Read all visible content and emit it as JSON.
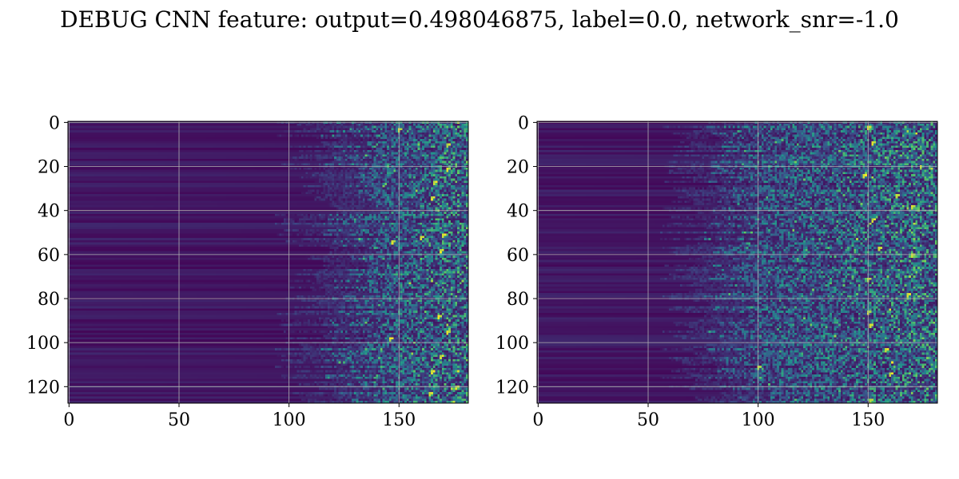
{
  "figure": {
    "suptitle": "DEBUG CNN feature: output=0.498046875, label=0.0, network_snr=-1.0"
  },
  "chart_data": [
    {
      "type": "heatmap",
      "colormap": "viridis",
      "grid": true,
      "rows": 128,
      "cols": 182,
      "xlim": [
        -0.5,
        181.5
      ],
      "ylim": [
        127.5,
        -0.5
      ],
      "x_ticks": [
        0,
        50,
        100,
        150
      ],
      "y_ticks": [
        0,
        20,
        40,
        60,
        80,
        100,
        120
      ],
      "value_profile": "near zero (dark purple) for columns 0-125 with faint horizontal row banding; scattered higher values (teal/green/yellow) concentrated in columns ~130-181",
      "onset_col": 128,
      "hotspots": [
        [
          3,
          150
        ],
        [
          10,
          172
        ],
        [
          21,
          172
        ],
        [
          27,
          166
        ],
        [
          34,
          165
        ],
        [
          51,
          170
        ],
        [
          52,
          160
        ],
        [
          54,
          147
        ],
        [
          58,
          169
        ],
        [
          88,
          168
        ],
        [
          95,
          172
        ],
        [
          98,
          146
        ],
        [
          106,
          169
        ],
        [
          113,
          165
        ],
        [
          120,
          176
        ],
        [
          123,
          164
        ]
      ]
    },
    {
      "type": "heatmap",
      "colormap": "viridis",
      "grid": true,
      "rows": 128,
      "cols": 182,
      "xlim": [
        -0.5,
        181.5
      ],
      "ylim": [
        127.5,
        -0.5
      ],
      "x_ticks": [
        0,
        50,
        100,
        150
      ],
      "y_ticks": [
        0,
        20,
        40,
        60,
        80,
        100,
        120
      ],
      "value_profile": "near zero for columns 0-85 with faint row banding; noisy speckled higher values for columns ~95-181, brightest points around column 150",
      "onset_col": 90,
      "hotspots": [
        [
          2,
          150
        ],
        [
          9,
          152
        ],
        [
          24,
          148
        ],
        [
          33,
          163
        ],
        [
          38,
          170
        ],
        [
          44,
          152
        ],
        [
          57,
          155
        ],
        [
          60,
          170
        ],
        [
          71,
          150
        ],
        [
          78,
          168
        ],
        [
          86,
          150
        ],
        [
          92,
          151
        ],
        [
          103,
          158
        ],
        [
          111,
          100
        ],
        [
          114,
          160
        ],
        [
          126,
          151
        ]
      ]
    }
  ]
}
